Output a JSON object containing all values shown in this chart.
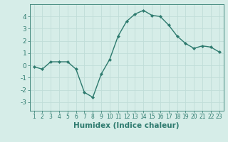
{
  "x": [
    1,
    2,
    3,
    4,
    5,
    6,
    7,
    8,
    9,
    10,
    11,
    12,
    13,
    14,
    15,
    16,
    17,
    18,
    19,
    20,
    21,
    22,
    23
  ],
  "y": [
    -0.1,
    -0.3,
    0.3,
    0.3,
    0.3,
    -0.3,
    -2.2,
    -2.6,
    -0.7,
    0.5,
    2.4,
    3.6,
    4.2,
    4.5,
    4.1,
    4.0,
    3.3,
    2.4,
    1.8,
    1.4,
    1.6,
    1.5,
    1.1
  ],
  "xlabel": "Humidex (Indice chaleur)",
  "yticks": [
    -3,
    -2,
    -1,
    0,
    1,
    2,
    3,
    4
  ],
  "ylim": [
    -3.7,
    5.0
  ],
  "xlim": [
    0.5,
    23.5
  ],
  "line_color": "#2d7a6e",
  "marker_color": "#2d7a6e",
  "bg_color": "#d6ede8",
  "grid_color": "#c0ddd8",
  "axis_label_color": "#2d7a6e",
  "tick_color": "#2d7a6e",
  "xlabel_fontsize": 7.5,
  "ytick_fontsize": 6.5,
  "xtick_fontsize": 5.5,
  "linewidth": 1.0,
  "markersize": 2.2
}
